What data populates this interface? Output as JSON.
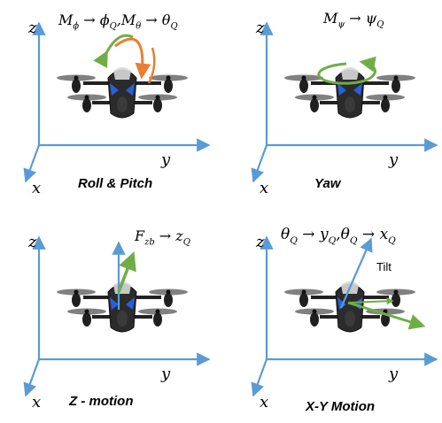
{
  "colors": {
    "axis": "#5b9bd5",
    "rotation_arrow": "#ed7d31",
    "yaw_arrow": "#70ad47",
    "force_arrow": "#70ad47",
    "drone_body": "#2b2b2b",
    "drone_accent": "#2a5fd6",
    "drone_hull": "#d9d9d9",
    "text": "#000000"
  },
  "axes": {
    "z": "z",
    "y": "y",
    "x": "x"
  },
  "panels": [
    {
      "id": "roll-pitch",
      "caption": "Roll & Pitch",
      "formula": [
        {
          "t": "M",
          "sub": "ϕ"
        },
        {
          "t": " → "
        },
        {
          "t": "ϕ",
          "sub": "Q"
        },
        {
          "t": ","
        },
        {
          "t": "M",
          "sub": "θ"
        },
        {
          "t": " → "
        },
        {
          "t": "θ",
          "sub": "Q"
        }
      ],
      "overlay": "roll-pitch-arrows"
    },
    {
      "id": "yaw",
      "caption": "Yaw",
      "formula": [
        {
          "t": "M",
          "sub": "ψ"
        },
        {
          "t": " → "
        },
        {
          "t": "ψ",
          "sub": "Q"
        }
      ],
      "overlay": "yaw-arrow"
    },
    {
      "id": "z-motion",
      "caption": "Z - motion",
      "formula": [
        {
          "t": "F",
          "sub": "zb"
        },
        {
          "t": " → "
        },
        {
          "t": "z",
          "sub": "Q"
        }
      ],
      "overlay": "thrust-arrow"
    },
    {
      "id": "xy-motion",
      "caption": "X-Y Motion",
      "formula": [
        {
          "t": "θ",
          "sub": "Q"
        },
        {
          "t": " → "
        },
        {
          "t": "y",
          "sub": "Q"
        },
        {
          "t": ","
        },
        {
          "t": "θ",
          "sub": "Q"
        },
        {
          "t": " → "
        },
        {
          "t": "x",
          "sub": "Q"
        }
      ],
      "overlay": "tilt-arrows",
      "tilt_label": "Tilt"
    }
  ]
}
